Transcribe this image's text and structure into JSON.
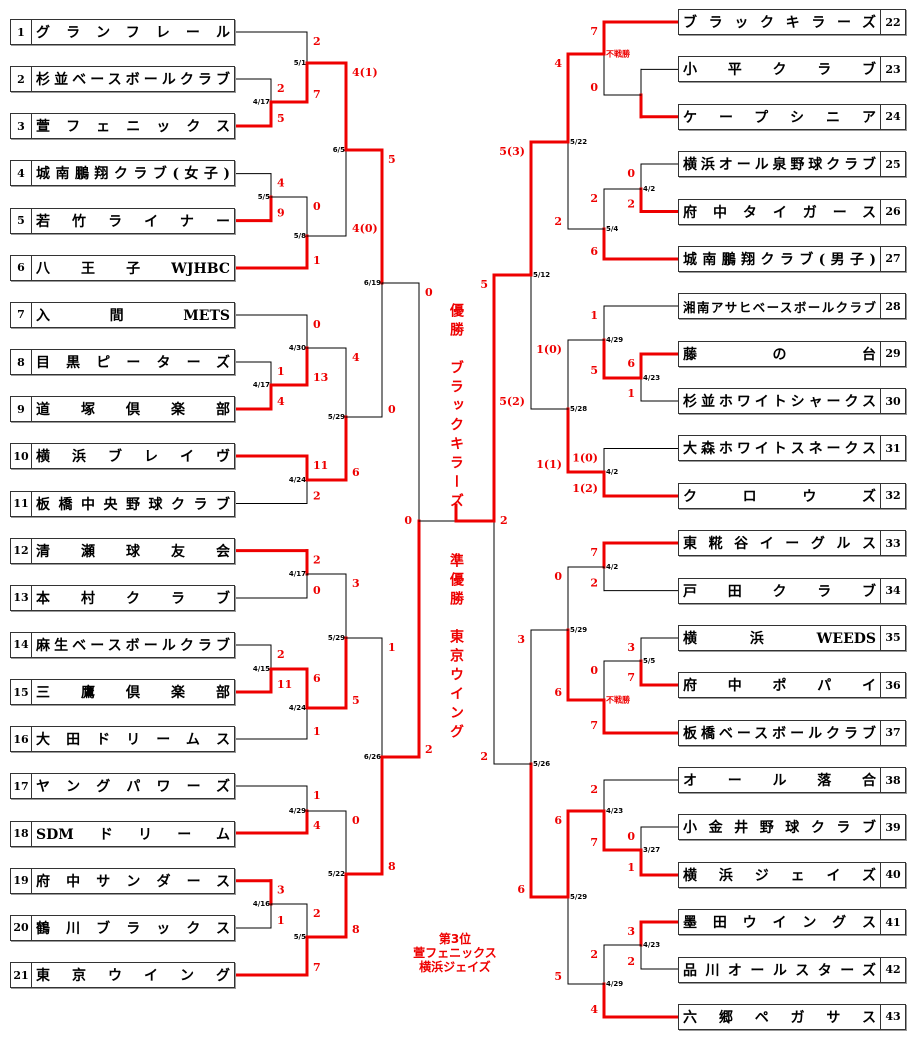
{
  "teams_left": [
    {
      "num": "1",
      "name": "グランフレール"
    },
    {
      "num": "2",
      "name": "杉並ベースボールクラブ"
    },
    {
      "num": "3",
      "name": "萱フェニックス"
    },
    {
      "num": "4",
      "name": "城南鵬翔クラブ(女子)"
    },
    {
      "num": "5",
      "name": "若竹ライナー"
    },
    {
      "num": "6",
      "name": "八王子WJHBC"
    },
    {
      "num": "7",
      "name": "入間METS"
    },
    {
      "num": "8",
      "name": "目黒ピーターズ"
    },
    {
      "num": "9",
      "name": "道塚倶楽部"
    },
    {
      "num": "10",
      "name": "横浜ブレイヴ"
    },
    {
      "num": "11",
      "name": "板橋中央野球クラブ"
    },
    {
      "num": "12",
      "name": "清瀬球友会"
    },
    {
      "num": "13",
      "name": "本村クラブ"
    },
    {
      "num": "14",
      "name": "麻生ベースボールクラブ"
    },
    {
      "num": "15",
      "name": "三鷹倶楽部"
    },
    {
      "num": "16",
      "name": "大田ドリームス"
    },
    {
      "num": "17",
      "name": "ヤングパワーズ"
    },
    {
      "num": "18",
      "name": "SDMドリーム"
    },
    {
      "num": "19",
      "name": "府中サンダース"
    },
    {
      "num": "20",
      "name": "鶴川ブラックス"
    },
    {
      "num": "21",
      "name": "東京ウイング"
    }
  ],
  "teams_right": [
    {
      "num": "22",
      "name": "ブラックキラーズ"
    },
    {
      "num": "23",
      "name": "小平クラブ"
    },
    {
      "num": "24",
      "name": "ケープシニア"
    },
    {
      "num": "25",
      "name": "横浜オール泉野球クラブ"
    },
    {
      "num": "26",
      "name": "府中タイガース"
    },
    {
      "num": "27",
      "name": "城南鵬翔クラブ(男子)"
    },
    {
      "num": "28",
      "name": "湘南アサヒベースボールクラブ"
    },
    {
      "num": "29",
      "name": "藤の台"
    },
    {
      "num": "30",
      "name": "杉並ホワイトシャークス"
    },
    {
      "num": "31",
      "name": "大森ホワイトスネークス"
    },
    {
      "num": "32",
      "name": "クロウズ"
    },
    {
      "num": "33",
      "name": "東糀谷イーグルス"
    },
    {
      "num": "34",
      "name": "戸田クラブ"
    },
    {
      "num": "35",
      "name": "横浜WEEDS"
    },
    {
      "num": "36",
      "name": "府中ポパイ"
    },
    {
      "num": "37",
      "name": "板橋ベースボールクラブ"
    },
    {
      "num": "38",
      "name": "オール落合"
    },
    {
      "num": "39",
      "name": "小金井野球クラブ"
    },
    {
      "num": "40",
      "name": "横浜ジェイズ"
    },
    {
      "num": "41",
      "name": "墨田ウイングス"
    },
    {
      "num": "42",
      "name": "品川オールスターズ"
    },
    {
      "num": "43",
      "name": "六郷ペガサス"
    }
  ],
  "matches_left": [
    {
      "date": "4/17",
      "top": "2",
      "bottom": "5"
    },
    {
      "date": "5/1",
      "top": "2",
      "bottom": "7"
    },
    {
      "date": "5/5",
      "top": "4",
      "bottom": "9"
    },
    {
      "date": "5/8",
      "top": "0",
      "bottom": "1"
    },
    {
      "date": "6/5",
      "top": "4(1)",
      "bottom": "4(0)"
    },
    {
      "date": "4/17",
      "top": "1",
      "bottom": "4"
    },
    {
      "date": "4/30",
      "top": "0",
      "bottom": "13"
    },
    {
      "date": "4/24",
      "top": "11",
      "bottom": "2"
    },
    {
      "date": "5/29",
      "top": "4",
      "bottom": "6"
    },
    {
      "date": "6/19",
      "top": "5",
      "bottom": "0"
    },
    {
      "date": "4/17",
      "top": "2",
      "bottom": "0"
    },
    {
      "date": "4/15",
      "top": "2",
      "bottom": "11"
    },
    {
      "date": "4/24",
      "top": "6",
      "bottom": "1"
    },
    {
      "date": "5/29",
      "top": "3",
      "bottom": "5"
    },
    {
      "date": "4/29",
      "top": "1",
      "bottom": "4"
    },
    {
      "date": "4/16",
      "top": "3",
      "bottom": "1"
    },
    {
      "date": "5/5",
      "top": "2",
      "bottom": "7"
    },
    {
      "date": "5/22",
      "top": "0",
      "bottom": "8"
    },
    {
      "date": "6/26",
      "top": "1",
      "bottom": "8"
    },
    {
      "date": "",
      "top": "0",
      "bottom": "2"
    }
  ],
  "matches_right": [
    {
      "date": "",
      "top": "",
      "bottom": ""
    },
    {
      "date": "不戦勝",
      "top": "7",
      "bottom": "0"
    },
    {
      "date": "4/2",
      "top": "0",
      "bottom": "2"
    },
    {
      "date": "5/4",
      "top": "2",
      "bottom": "6"
    },
    {
      "date": "5/22",
      "top": "4",
      "bottom": "2"
    },
    {
      "date": "4/23",
      "top": "6",
      "bottom": "1"
    },
    {
      "date": "4/29",
      "top": "1",
      "bottom": "5"
    },
    {
      "date": "4/2",
      "top": "1(0)",
      "bottom": "1(2)"
    },
    {
      "date": "5/28",
      "top": "1(0)",
      "bottom": "1(1)"
    },
    {
      "date": "5/12",
      "top": "5(3)",
      "bottom": "5(2)"
    },
    {
      "date": "4/2",
      "top": "7",
      "bottom": "2"
    },
    {
      "date": "5/5",
      "top": "3",
      "bottom": "7"
    },
    {
      "date": "不戦勝",
      "top": "0",
      "bottom": "7"
    },
    {
      "date": "5/29",
      "top": "0",
      "bottom": "6"
    },
    {
      "date": "3/27",
      "top": "0",
      "bottom": "1"
    },
    {
      "date": "4/23",
      "top": "2",
      "bottom": "7"
    },
    {
      "date": "4/23",
      "top": "3",
      "bottom": "2"
    },
    {
      "date": "4/29",
      "top": "2",
      "bottom": "4"
    },
    {
      "date": "5/29",
      "top": "6",
      "bottom": "5"
    },
    {
      "date": "5/26",
      "top": "3",
      "bottom": "6"
    },
    {
      "date": "",
      "top": "5",
      "bottom": "2"
    }
  ],
  "final": {
    "left_score": "0",
    "right_score": "2"
  },
  "champion": {
    "label": "優勝",
    "team": "ブラックキラーズ"
  },
  "runner_up": {
    "label": "準優勝",
    "team": "東京ウイング"
  },
  "third_place": {
    "label": "第3位",
    "teams": [
      "萱フェニックス",
      "横浜ジェイズ"
    ]
  },
  "colors": {
    "winner_line": "#ee0000",
    "loser_line": "#000000",
    "score": "#ee0000"
  }
}
